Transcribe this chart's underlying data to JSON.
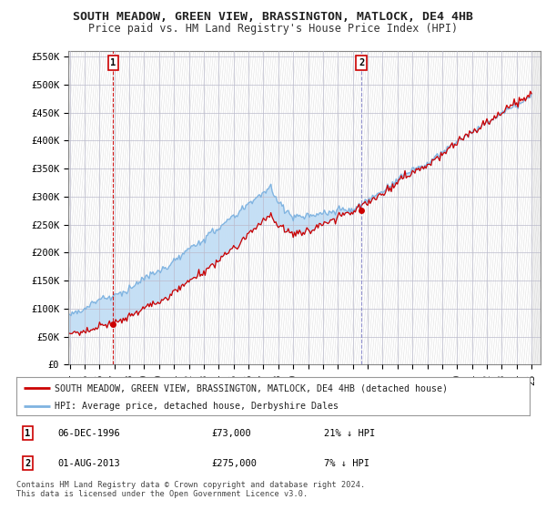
{
  "title": "SOUTH MEADOW, GREEN VIEW, BRASSINGTON, MATLOCK, DE4 4HB",
  "subtitle": "Price paid vs. HM Land Registry's House Price Index (HPI)",
  "ylim": [
    0,
    560000
  ],
  "yticks": [
    0,
    50000,
    100000,
    150000,
    200000,
    250000,
    300000,
    350000,
    400000,
    450000,
    500000,
    550000
  ],
  "sale1_date": 1996.92,
  "sale1_price": 73000,
  "sale1_label": "1",
  "sale2_date": 2013.58,
  "sale2_price": 275000,
  "sale2_label": "2",
  "hpi_color": "#7fb3e0",
  "price_color": "#cc0000",
  "vline1_color": "#cc0000",
  "vline2_color": "#8888cc",
  "fill_color": "#c5dff5",
  "background_color": "#ffffff",
  "grid_color": "#bbbbcc",
  "hatch_color": "#cccccc",
  "legend_label_red": "SOUTH MEADOW, GREEN VIEW, BRASSINGTON, MATLOCK, DE4 4HB (detached house)",
  "legend_label_blue": "HPI: Average price, detached house, Derbyshire Dales",
  "annotation1_date": "06-DEC-1996",
  "annotation1_price": "£73,000",
  "annotation1_hpi": "21% ↓ HPI",
  "annotation2_date": "01-AUG-2013",
  "annotation2_price": "£275,000",
  "annotation2_hpi": "7% ↓ HPI",
  "footer": "Contains HM Land Registry data © Crown copyright and database right 2024.\nThis data is licensed under the Open Government Licence v3.0.",
  "title_fontsize": 9.5,
  "subtitle_fontsize": 8.5,
  "tick_fontsize": 7.5,
  "xstart": 1994,
  "xend": 2025
}
